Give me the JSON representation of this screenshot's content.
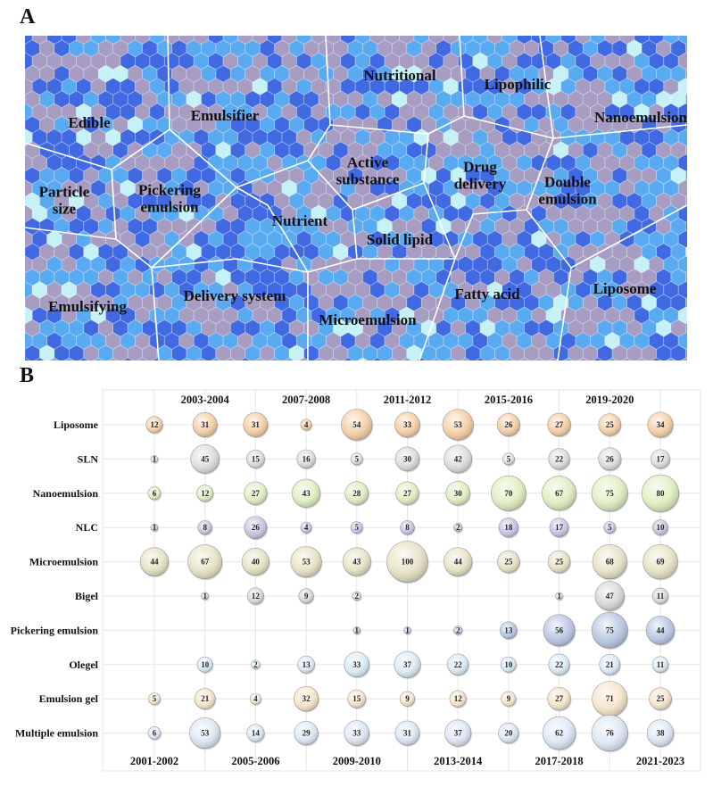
{
  "panels": {
    "a_letter": "A",
    "b_letter": "B"
  },
  "voronoi": {
    "cell_colors": [
      "#4169e1",
      "#5aaaf2",
      "#a79cc2",
      "#c6f2f7"
    ],
    "regions": [
      {
        "label": "Edible",
        "lines": [
          "Edible"
        ]
      },
      {
        "label": "Emulsifier",
        "lines": [
          "Emulsifier"
        ]
      },
      {
        "label": "Nutritional",
        "lines": [
          "Nutritional"
        ]
      },
      {
        "label": "Lipophilic",
        "lines": [
          "Lipophilic"
        ]
      },
      {
        "label": "Nanoemulsion",
        "lines": [
          "Nanoemulsion"
        ]
      },
      {
        "label": "Particle size",
        "lines": [
          "Particle",
          "size"
        ]
      },
      {
        "label": "Pickering emulsion",
        "lines": [
          "Pickering",
          "emulsion"
        ]
      },
      {
        "label": "Active substance",
        "lines": [
          "Active",
          "substance"
        ]
      },
      {
        "label": "Drug delivery",
        "lines": [
          "Drug",
          "delivery"
        ]
      },
      {
        "label": "Double emulsion",
        "lines": [
          "Double",
          "emulsion"
        ]
      },
      {
        "label": "Nutrient",
        "lines": [
          "Nutrient"
        ]
      },
      {
        "label": "Solid lipid",
        "lines": [
          "Solid lipid"
        ]
      },
      {
        "label": "Emulsifying",
        "lines": [
          "Emulsifying"
        ]
      },
      {
        "label": "Delivery system",
        "lines": [
          "Delivery system"
        ]
      },
      {
        "label": "Microemulsion",
        "lines": [
          "Microemulsion"
        ]
      },
      {
        "label": "Fatty acid",
        "lines": [
          "Fatty acid"
        ]
      },
      {
        "label": "Liposome",
        "lines": [
          "Liposome"
        ]
      }
    ]
  },
  "chart_data": {
    "type": "bubble",
    "grid": true,
    "categories": [
      "2001-2002",
      "2003-2004",
      "2005-2006",
      "2007-2008",
      "2009-2010",
      "2011-2012",
      "2013-2014",
      "2015-2016",
      "2017-2018",
      "2019-2020",
      "2021-2023"
    ],
    "top_tick_labels": [
      "2003-2004",
      "2007-2008",
      "2011-2012",
      "2015-2016",
      "2019-2020"
    ],
    "bottom_tick_labels": [
      "2001-2002",
      "2005-2006",
      "2009-2010",
      "2013-2014",
      "2017-2018",
      "2021-2023"
    ],
    "series": [
      {
        "name": "Liposome",
        "color": "#f6cfa6",
        "values": [
          12,
          31,
          31,
          4,
          54,
          33,
          53,
          26,
          27,
          25,
          34
        ]
      },
      {
        "name": "SLN",
        "color": "#dedede",
        "values": [
          1,
          45,
          15,
          16,
          5,
          30,
          42,
          5,
          22,
          26,
          17
        ]
      },
      {
        "name": "Nanoemulsion",
        "color": "#e0efc2",
        "values": [
          6,
          12,
          27,
          43,
          28,
          27,
          30,
          70,
          67,
          75,
          80
        ]
      },
      {
        "name": "NLC",
        "color": "#cbc3e3",
        "values": [
          1,
          8,
          26,
          4,
          5,
          8,
          2,
          18,
          17,
          5,
          10
        ]
      },
      {
        "name": "Microemulsion",
        "color": "#e8e3c6",
        "values": [
          44,
          67,
          40,
          53,
          43,
          100,
          44,
          25,
          25,
          68,
          69
        ]
      },
      {
        "name": "Bigel",
        "color": "#d9d9d9",
        "values": [
          null,
          1,
          12,
          9,
          2,
          null,
          null,
          null,
          1,
          47,
          11
        ]
      },
      {
        "name": "Pickering emulsion",
        "color": "#b9c8e3",
        "values": [
          null,
          null,
          null,
          null,
          1,
          1,
          2,
          13,
          56,
          75,
          44
        ]
      },
      {
        "name": "Olegel",
        "color": "#daedf7",
        "values": [
          null,
          10,
          2,
          13,
          33,
          37,
          22,
          10,
          22,
          21,
          11
        ]
      },
      {
        "name": "Emulsion gel",
        "color": "#f6e5cd",
        "values": [
          5,
          21,
          4,
          32,
          15,
          9,
          12,
          9,
          27,
          71,
          25
        ]
      },
      {
        "name": "Multiple emulsion",
        "color": "#dde8f6",
        "values": [
          6,
          53,
          14,
          29,
          33,
          31,
          37,
          20,
          62,
          76,
          38
        ]
      }
    ]
  }
}
